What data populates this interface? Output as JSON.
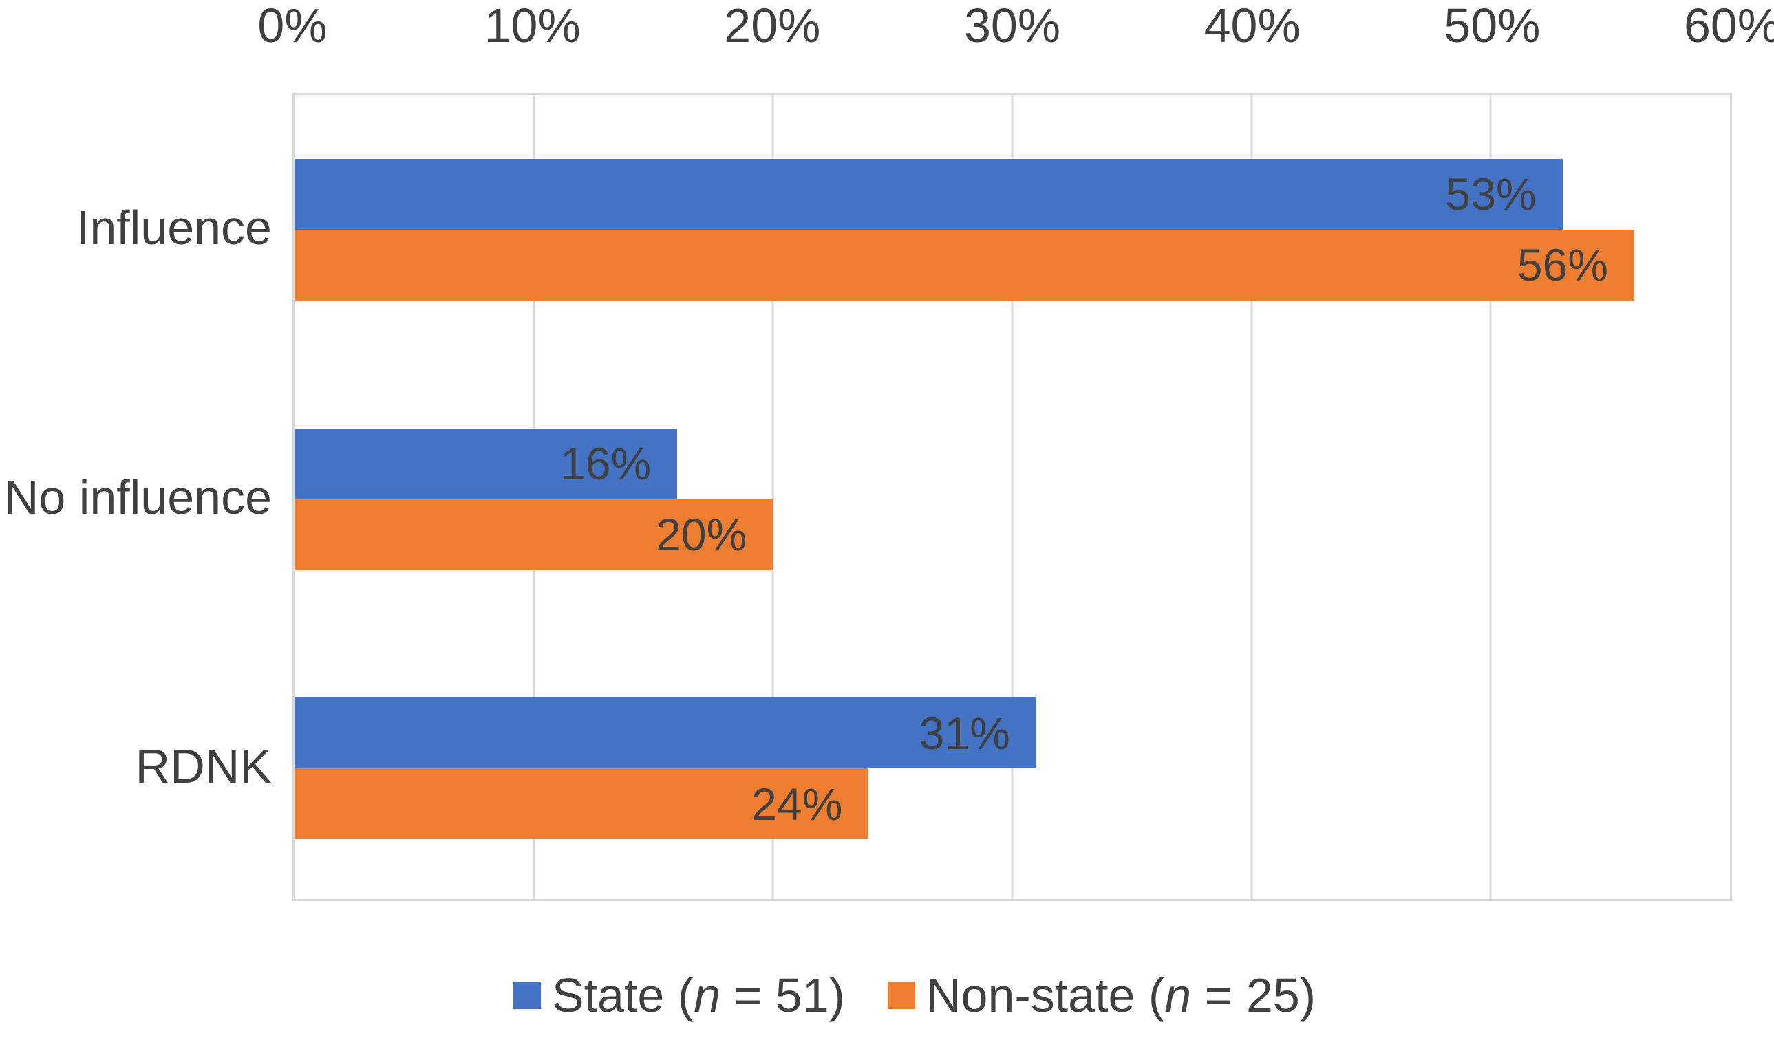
{
  "chart_data": {
    "type": "bar",
    "orientation": "horizontal",
    "title": "",
    "categories": [
      "Influence",
      "No influence",
      "RDNK"
    ],
    "series": [
      {
        "name": "State (n = 51)",
        "color": "#4472C4",
        "values": [
          53,
          16,
          31
        ],
        "labels": [
          "53%",
          "16%",
          "31%"
        ]
      },
      {
        "name": "Non-state (n = 25)",
        "color": "#ED7D31",
        "values": [
          56,
          20,
          24
        ],
        "labels": [
          "56%",
          "20%",
          "24%"
        ]
      }
    ],
    "value_axis": {
      "position": "top",
      "min": 0,
      "max": 60,
      "tick_step": 10,
      "tick_labels": [
        "0%",
        "10%",
        "20%",
        "30%",
        "40%",
        "50%",
        "60%"
      ]
    },
    "grid": true,
    "data_label_position": "inside-end",
    "legend_position": "bottom"
  },
  "legend": {
    "items": [
      {
        "prefix": "State (",
        "italic_var": "n",
        "suffix": " = 51)",
        "color": "#4472C4"
      },
      {
        "prefix": "Non-state (",
        "italic_var": "n",
        "suffix": " = 25)",
        "color": "#ED7D31"
      }
    ]
  },
  "colors": {
    "state_blue": "#4472C4",
    "nonstate_orange": "#ED7D31",
    "gridline": "#D9D9D9",
    "plot_border": "#D9D9D9",
    "text": "#404040",
    "background": "#FFFFFF"
  }
}
